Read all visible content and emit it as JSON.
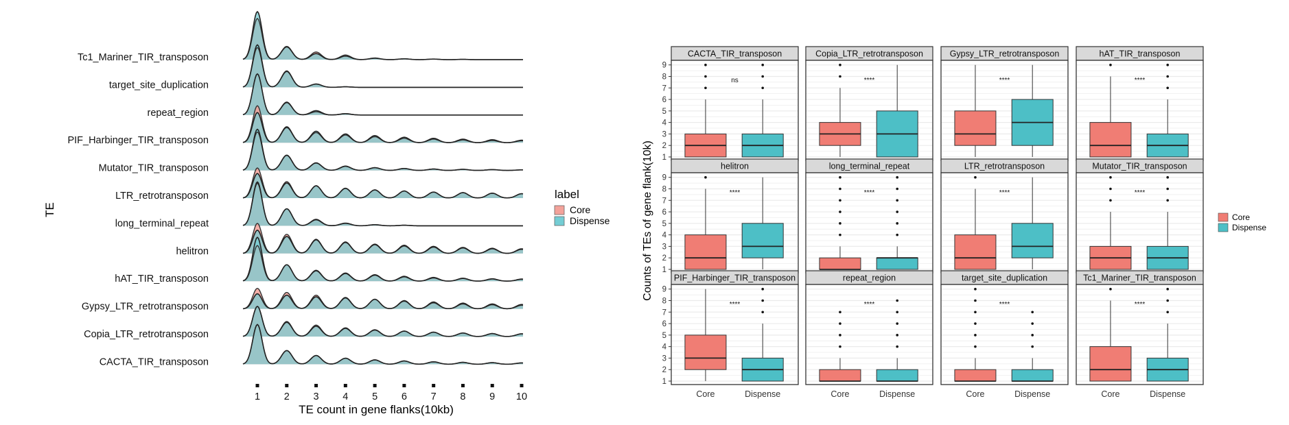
{
  "colors": {
    "core": "#F07D74",
    "dispense": "#4DBFC6",
    "core_ridge": "#F3A29A",
    "dispense_ridge": "#74CDD4",
    "overlap": "#7FA9A3",
    "facet_strip": "#D9D9D9",
    "grid": "#EBEBEB"
  },
  "chart_data": [
    {
      "type": "area",
      "subtype": "ridgeline",
      "xlabel": "TE count in gene flanks(10kb)",
      "ylabel": "TE",
      "x_ticks": [
        "1",
        "2",
        "3",
        "4",
        "5",
        "6",
        "7",
        "8",
        "9",
        "10"
      ],
      "xlim": [
        1,
        10
      ],
      "legend": {
        "title": "label",
        "entries": [
          "Core",
          "Dispense"
        ],
        "placement": "right"
      },
      "categories": [
        "Tc1_Mariner_TIR_transposon",
        "target_site_duplication",
        "repeat_region",
        "PIF_Harbinger_TIR_transposon",
        "Mutator_TIR_transposon",
        "LTR_retrotransposon",
        "long_terminal_repeat",
        "helitron",
        "hAT_TIR_transposon",
        "Gypsy_LTR_retrotransposon",
        "Copia_LTR_retrotransposon",
        "CACTA_TIR_transposon"
      ],
      "series": [
        {
          "name": "Core",
          "peak_heights": [
            [
              1.5,
              0.46,
              0.28,
              0.17,
              0.06,
              0.03,
              0.02,
              0.01,
              0.0,
              0.0
            ],
            [
              1.45,
              0.6,
              0.12,
              0.02,
              0.0,
              0.0,
              0.0,
              0.0,
              0.0,
              0.0
            ],
            [
              1.5,
              0.45,
              0.12,
              0.05,
              0.0,
              0.0,
              0.0,
              0.0,
              0.0,
              0.0
            ],
            [
              1.35,
              0.55,
              0.37,
              0.28,
              0.22,
              0.16,
              0.13,
              0.1,
              0.08,
              0.07
            ],
            [
              1.4,
              0.56,
              0.28,
              0.16,
              0.1,
              0.07,
              0.05,
              0.04,
              0.03,
              0.02
            ],
            [
              1.1,
              0.6,
              0.45,
              0.35,
              0.3,
              0.26,
              0.22,
              0.2,
              0.18,
              0.16
            ],
            [
              1.55,
              0.62,
              0.24,
              0.1,
              0.04,
              0.02,
              0.0,
              0.0,
              0.0,
              0.0
            ],
            [
              1.1,
              0.7,
              0.52,
              0.4,
              0.32,
              0.27,
              0.23,
              0.2,
              0.17,
              0.15
            ],
            [
              1.3,
              0.6,
              0.4,
              0.3,
              0.24,
              0.18,
              0.14,
              0.11,
              0.09,
              0.08
            ],
            [
              0.75,
              0.6,
              0.5,
              0.42,
              0.35,
              0.28,
              0.22,
              0.18,
              0.15,
              0.13
            ],
            [
              1.1,
              0.55,
              0.42,
              0.32,
              0.25,
              0.2,
              0.16,
              0.13,
              0.11,
              0.1
            ],
            [
              1.45,
              0.5,
              0.32,
              0.22,
              0.16,
              0.12,
              0.09,
              0.07,
              0.06,
              0.05
            ]
          ]
        },
        {
          "name": "Dispense",
          "peak_heights": [
            [
              1.75,
              0.48,
              0.22,
              0.13,
              0.05,
              0.03,
              0.02,
              0.01,
              0.0,
              0.0
            ],
            [
              1.55,
              0.58,
              0.12,
              0.02,
              0.0,
              0.0,
              0.0,
              0.0,
              0.0,
              0.0
            ],
            [
              1.5,
              0.47,
              0.16,
              0.05,
              0.0,
              0.0,
              0.0,
              0.0,
              0.0,
              0.0
            ],
            [
              1.1,
              0.58,
              0.42,
              0.32,
              0.26,
              0.2,
              0.16,
              0.13,
              0.11,
              0.09
            ],
            [
              1.5,
              0.55,
              0.27,
              0.15,
              0.1,
              0.07,
              0.05,
              0.04,
              0.03,
              0.02
            ],
            [
              0.9,
              0.55,
              0.45,
              0.36,
              0.3,
              0.26,
              0.22,
              0.2,
              0.18,
              0.16
            ],
            [
              1.6,
              0.62,
              0.22,
              0.09,
              0.04,
              0.02,
              0.0,
              0.0,
              0.0,
              0.0
            ],
            [
              0.85,
              0.62,
              0.5,
              0.42,
              0.34,
              0.3,
              0.26,
              0.22,
              0.19,
              0.17
            ],
            [
              1.6,
              0.6,
              0.38,
              0.28,
              0.22,
              0.16,
              0.12,
              0.1,
              0.08,
              0.07
            ],
            [
              0.55,
              0.5,
              0.44,
              0.4,
              0.35,
              0.3,
              0.25,
              0.21,
              0.18,
              0.16
            ],
            [
              1.1,
              0.52,
              0.38,
              0.3,
              0.24,
              0.2,
              0.16,
              0.13,
              0.11,
              0.1
            ],
            [
              1.45,
              0.5,
              0.32,
              0.22,
              0.16,
              0.12,
              0.09,
              0.07,
              0.06,
              0.05
            ]
          ]
        }
      ]
    },
    {
      "type": "box",
      "faceted": true,
      "facet_columns": 4,
      "ylabel": "Counts of TEs of gene flank(10k)",
      "xlabel": "",
      "categories": [
        "Core",
        "Dispense"
      ],
      "ylim": [
        0.7,
        9.4
      ],
      "y_ticks": [
        1,
        2,
        3,
        4,
        5,
        6,
        7,
        8,
        9
      ],
      "legend": {
        "title": "",
        "entries": [
          "Core",
          "Dispense"
        ],
        "placement": "right"
      },
      "facets": [
        {
          "title": "CACTA_TIR_transposon",
          "significance": "ns",
          "core": {
            "q1": 1,
            "median": 2,
            "q3": 3,
            "whisker_low": 1,
            "whisker_high": 6,
            "outliers": [
              7,
              8,
              9
            ]
          },
          "dispense": {
            "q1": 1,
            "median": 2,
            "q3": 3,
            "whisker_low": 1,
            "whisker_high": 6,
            "outliers": [
              7,
              8,
              9
            ]
          }
        },
        {
          "title": "Copia_LTR_retrotransposon",
          "significance": "****",
          "core": {
            "q1": 2,
            "median": 3,
            "q3": 4,
            "whisker_low": 1,
            "whisker_high": 7,
            "outliers": [
              8,
              9
            ]
          },
          "dispense": {
            "q1": 1,
            "median": 3,
            "q3": 5,
            "whisker_low": 1,
            "whisker_high": 9,
            "outliers": []
          }
        },
        {
          "title": "Gypsy_LTR_retrotransposon",
          "significance": "****",
          "core": {
            "q1": 2,
            "median": 3,
            "q3": 5,
            "whisker_low": 1,
            "whisker_high": 9,
            "outliers": []
          },
          "dispense": {
            "q1": 2,
            "median": 4,
            "q3": 6,
            "whisker_low": 1,
            "whisker_high": 9,
            "outliers": []
          }
        },
        {
          "title": "hAT_TIR_transposon",
          "significance": "****",
          "core": {
            "q1": 1,
            "median": 2,
            "q3": 4,
            "whisker_low": 1,
            "whisker_high": 8,
            "outliers": [
              9
            ]
          },
          "dispense": {
            "q1": 1,
            "median": 2,
            "q3": 3,
            "whisker_low": 1,
            "whisker_high": 6,
            "outliers": [
              7,
              8,
              9
            ]
          }
        },
        {
          "title": "helitron",
          "significance": "****",
          "core": {
            "q1": 1,
            "median": 2,
            "q3": 4,
            "whisker_low": 1,
            "whisker_high": 8,
            "outliers": [
              9
            ]
          },
          "dispense": {
            "q1": 2,
            "median": 3,
            "q3": 5,
            "whisker_low": 1,
            "whisker_high": 9,
            "outliers": []
          }
        },
        {
          "title": "long_terminal_repeat",
          "significance": "****",
          "core": {
            "q1": 1,
            "median": 1,
            "q3": 2,
            "whisker_low": 1,
            "whisker_high": 3,
            "outliers": [
              4,
              5,
              6,
              7,
              8,
              9
            ]
          },
          "dispense": {
            "q1": 1,
            "median": 2,
            "q3": 2,
            "whisker_low": 1,
            "whisker_high": 3,
            "outliers": [
              4,
              5,
              6,
              7,
              8,
              9
            ]
          }
        },
        {
          "title": "LTR_retrotransposon",
          "significance": "****",
          "core": {
            "q1": 1,
            "median": 2,
            "q3": 4,
            "whisker_low": 1,
            "whisker_high": 8,
            "outliers": [
              9
            ]
          },
          "dispense": {
            "q1": 2,
            "median": 3,
            "q3": 5,
            "whisker_low": 1,
            "whisker_high": 9,
            "outliers": []
          }
        },
        {
          "title": "Mutator_TIR_transposon",
          "significance": "****",
          "core": {
            "q1": 1,
            "median": 2,
            "q3": 3,
            "whisker_low": 1,
            "whisker_high": 6,
            "outliers": [
              7,
              8,
              9
            ]
          },
          "dispense": {
            "q1": 1,
            "median": 2,
            "q3": 3,
            "whisker_low": 1,
            "whisker_high": 6,
            "outliers": [
              7,
              8,
              9
            ]
          }
        },
        {
          "title": "PIF_Harbinger_TIR_transposon",
          "significance": "****",
          "core": {
            "q1": 2,
            "median": 3,
            "q3": 5,
            "whisker_low": 1,
            "whisker_high": 9,
            "outliers": []
          },
          "dispense": {
            "q1": 1,
            "median": 2,
            "q3": 3,
            "whisker_low": 1,
            "whisker_high": 6,
            "outliers": [
              7,
              8,
              9
            ]
          }
        },
        {
          "title": "repeat_region",
          "significance": "****",
          "core": {
            "q1": 1,
            "median": 1,
            "q3": 2,
            "whisker_low": 1,
            "whisker_high": 3,
            "outliers": [
              4,
              5,
              6,
              7
            ]
          },
          "dispense": {
            "q1": 1,
            "median": 1,
            "q3": 2,
            "whisker_low": 1,
            "whisker_high": 3,
            "outliers": [
              4,
              5,
              6,
              7,
              8
            ]
          }
        },
        {
          "title": "target_site_duplication",
          "significance": "****",
          "core": {
            "q1": 1,
            "median": 1,
            "q3": 2,
            "whisker_low": 1,
            "whisker_high": 3,
            "outliers": [
              4,
              5,
              6,
              7,
              8,
              9
            ]
          },
          "dispense": {
            "q1": 1,
            "median": 1,
            "q3": 2,
            "whisker_low": 1,
            "whisker_high": 3,
            "outliers": [
              4,
              5,
              6,
              7
            ]
          }
        },
        {
          "title": "Tc1_Mariner_TIR_transposon",
          "significance": "****",
          "core": {
            "q1": 1,
            "median": 2,
            "q3": 4,
            "whisker_low": 1,
            "whisker_high": 8,
            "outliers": [
              9
            ]
          },
          "dispense": {
            "q1": 1,
            "median": 2,
            "q3": 3,
            "whisker_low": 1,
            "whisker_high": 6,
            "outliers": [
              7,
              8,
              9
            ]
          }
        }
      ]
    }
  ]
}
